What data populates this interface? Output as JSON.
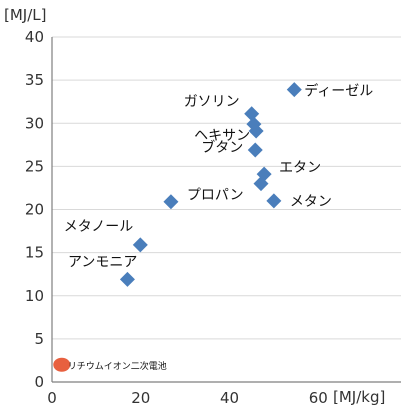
{
  "chart_data": {
    "type": "scatter",
    "xlabel": "[MJ/kg]",
    "ylabel": "[MJ/L]",
    "xlim": [
      0,
      80
    ],
    "ylim": [
      0,
      40
    ],
    "x_ticks": [
      "0",
      "20",
      "40",
      "60"
    ],
    "y_ticks": [
      "0",
      "5",
      "10",
      "15",
      "20",
      "25",
      "30",
      "35",
      "40"
    ],
    "grid": "horizontal",
    "series": [
      {
        "marker": "diamond",
        "color": "#4a7ebb",
        "points": [
          {
            "label": "ディーゼル",
            "x": 54.6,
            "y": 33.9
          },
          {
            "label": "ガソリン",
            "x": 45.0,
            "y": 31.1
          },
          {
            "label": "",
            "x": 45.5,
            "y": 29.9
          },
          {
            "label": "ヘキサン",
            "x": 46.0,
            "y": 29.1
          },
          {
            "label": "ブタン",
            "x": 45.8,
            "y": 26.9
          },
          {
            "label": "エタン",
            "x": 47.8,
            "y": 24.1
          },
          {
            "label": "",
            "x": 47.1,
            "y": 23.0
          },
          {
            "label": "メタン",
            "x": 50.0,
            "y": 21.0
          },
          {
            "label": "プロパン",
            "x": 26.8,
            "y": 20.9
          },
          {
            "label": "メタノール",
            "x": 19.9,
            "y": 15.9
          },
          {
            "label": "アンモニア",
            "x": 17.0,
            "y": 11.9
          }
        ]
      },
      {
        "marker": "ellipse",
        "color": "#e8603f",
        "points": [
          {
            "label": "リチウムイオン二次電池",
            "x": 0.4,
            "y": 2.0
          }
        ]
      }
    ]
  }
}
